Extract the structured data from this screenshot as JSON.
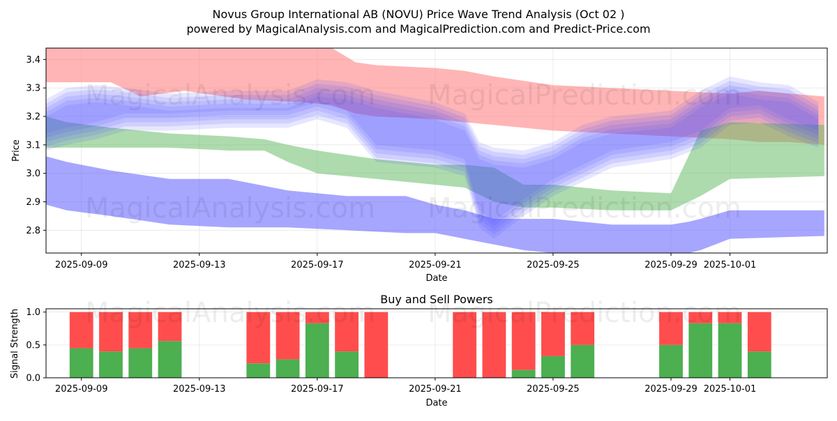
{
  "header": {
    "title_line1": "Novus Group International AB (NOVU) Price Wave Trend Analysis (Oct 02 )",
    "title_line2": "powered by MagicalAnalysis.com and MagicalPrediction.com and Predict-Price.com"
  },
  "watermarks": {
    "left": "MagicalAnalysis.com",
    "right": "MagicalPrediction.com"
  },
  "colors": {
    "red_band": "#ff6b6b",
    "green_band": "#5cb85c",
    "blue_band": "#4d4dff",
    "buy": "#4caf50",
    "sell": "#ff4d4d"
  },
  "chart_data": [
    {
      "type": "area",
      "title": "",
      "xlabel": "Date",
      "ylabel": "Price",
      "ylim": [
        2.72,
        3.44
      ],
      "xlim_days": [
        -1.2,
        25.3
      ],
      "date_origin": "2025-09-09",
      "yticks": [
        2.8,
        2.9,
        3.0,
        3.1,
        3.2,
        3.3,
        3.4
      ],
      "xticks": [
        {
          "day": 0,
          "label": "2025-09-09"
        },
        {
          "day": 4,
          "label": "2025-09-13"
        },
        {
          "day": 8,
          "label": "2025-09-17"
        },
        {
          "day": 12,
          "label": "2025-09-21"
        },
        {
          "day": 16,
          "label": "2025-09-25"
        },
        {
          "day": 20,
          "label": "2025-09-29"
        },
        {
          "day": 22,
          "label": "2025-10-01"
        }
      ],
      "grid": true,
      "series": [
        {
          "name": "red-wave",
          "color": "red",
          "x": [
            -1.9,
            -0.5,
            1.0,
            2.0,
            3.5,
            5.5,
            7.5,
            8.5,
            9.3,
            10.0,
            12.0,
            13.0,
            14.0,
            16.0,
            18.0,
            20.0,
            22.0,
            23.0,
            24.0,
            25.2
          ],
          "upper": [
            3.45,
            3.45,
            3.45,
            3.45,
            3.45,
            3.45,
            3.45,
            3.45,
            3.39,
            3.38,
            3.37,
            3.36,
            3.34,
            3.31,
            3.3,
            3.29,
            3.28,
            3.29,
            3.28,
            3.27
          ],
          "lower": [
            3.32,
            3.32,
            3.32,
            3.27,
            3.29,
            3.26,
            3.25,
            3.24,
            3.21,
            3.2,
            3.19,
            3.18,
            3.17,
            3.15,
            3.14,
            3.13,
            3.12,
            3.11,
            3.11,
            3.1
          ]
        },
        {
          "name": "green-wave",
          "color": "green",
          "x": [
            -1.9,
            -1.7,
            -0.5,
            1.0,
            3.0,
            5.0,
            6.2,
            7.0,
            8.0,
            10.0,
            12.0,
            13.0,
            14.0,
            15.0,
            16.0,
            18.0,
            20.0,
            21.0,
            22.0,
            25.2
          ],
          "upper": [
            3.04,
            3.2,
            3.18,
            3.16,
            3.14,
            3.13,
            3.12,
            3.1,
            3.08,
            3.05,
            3.03,
            3.03,
            3.02,
            2.96,
            2.96,
            2.94,
            2.93,
            3.15,
            3.18,
            3.17
          ],
          "lower": [
            3.04,
            3.09,
            3.09,
            3.09,
            3.09,
            3.08,
            3.08,
            3.04,
            3.0,
            2.98,
            2.96,
            2.95,
            2.9,
            2.88,
            2.88,
            2.87,
            2.87,
            2.92,
            2.98,
            2.99
          ]
        },
        {
          "name": "blue-wave-low",
          "color": "blue",
          "x": [
            -1.9,
            -0.5,
            1.0,
            3.0,
            5.0,
            7.0,
            9.0,
            11.0,
            12.0,
            13.0,
            14.0,
            15.0,
            16.0,
            17.0,
            18.0,
            19.0,
            20.0,
            20.6,
            21.0,
            22.0,
            25.2
          ],
          "upper": [
            3.06,
            3.04,
            3.01,
            2.98,
            2.98,
            2.94,
            2.92,
            2.92,
            2.89,
            2.87,
            2.84,
            2.84,
            2.84,
            2.83,
            2.82,
            2.82,
            2.82,
            2.83,
            2.84,
            2.87,
            2.87
          ],
          "lower": [
            2.89,
            2.87,
            2.85,
            2.82,
            2.81,
            2.81,
            2.8,
            2.79,
            2.79,
            2.77,
            2.75,
            2.73,
            2.72,
            2.71,
            2.7,
            2.7,
            2.69,
            2.7,
            2.73,
            2.77,
            2.78
          ]
        },
        {
          "name": "blue-wave-high",
          "color": "blue",
          "x": [
            -1.4,
            -0.5,
            0.5,
            1.5,
            3.0,
            5.0,
            7.0,
            8.0,
            9.0,
            10.0,
            12.0,
            13.0,
            13.5,
            14.0,
            15.0,
            16.0,
            17.0,
            18.0,
            20.0,
            21.0,
            22.0,
            23.0,
            24.0,
            25.0
          ],
          "upper": [
            3.23,
            3.27,
            3.28,
            3.27,
            3.25,
            3.26,
            3.26,
            3.3,
            3.29,
            3.26,
            3.22,
            3.18,
            3.08,
            3.06,
            3.05,
            3.08,
            3.14,
            3.17,
            3.19,
            3.26,
            3.31,
            3.29,
            3.28,
            3.22
          ],
          "lower": [
            3.11,
            3.13,
            3.15,
            3.18,
            3.18,
            3.19,
            3.19,
            3.22,
            3.19,
            3.07,
            3.05,
            3.02,
            2.84,
            2.8,
            2.88,
            2.95,
            3.0,
            3.05,
            3.08,
            3.12,
            3.2,
            3.21,
            3.16,
            3.12
          ]
        }
      ]
    },
    {
      "type": "bar",
      "stacked": true,
      "title": "Buy and Sell Powers",
      "xlabel": "Date",
      "ylabel": "Signal Strength",
      "ylim": [
        0,
        1.05
      ],
      "xlim_days": [
        -1.2,
        25.3
      ],
      "date_origin": "2025-09-09",
      "yticks": [
        0.0,
        0.5,
        1.0
      ],
      "xticks": [
        {
          "day": 0,
          "label": "2025-09-09"
        },
        {
          "day": 4,
          "label": "2025-09-13"
        },
        {
          "day": 8,
          "label": "2025-09-17"
        },
        {
          "day": 12,
          "label": "2025-09-21"
        },
        {
          "day": 16,
          "label": "2025-09-25"
        },
        {
          "day": 20,
          "label": "2025-09-29"
        },
        {
          "day": 22,
          "label": "2025-10-01"
        }
      ],
      "days": [
        0,
        1,
        2,
        3,
        6,
        7,
        8,
        9,
        10,
        13,
        14,
        15,
        16,
        17,
        20,
        21,
        22,
        23
      ],
      "series": [
        {
          "name": "Buy",
          "values": [
            0.45,
            0.4,
            0.45,
            0.56,
            0.22,
            0.28,
            0.83,
            0.4,
            0.0,
            0.0,
            0.0,
            0.12,
            0.33,
            0.5,
            0.5,
            0.83,
            0.83,
            0.4
          ]
        },
        {
          "name": "Sell",
          "values": [
            0.55,
            0.6,
            0.55,
            0.44,
            0.78,
            0.72,
            0.17,
            0.6,
            1.0,
            1.0,
            1.0,
            0.88,
            0.67,
            0.5,
            0.5,
            0.17,
            0.17,
            0.6
          ]
        }
      ]
    }
  ]
}
